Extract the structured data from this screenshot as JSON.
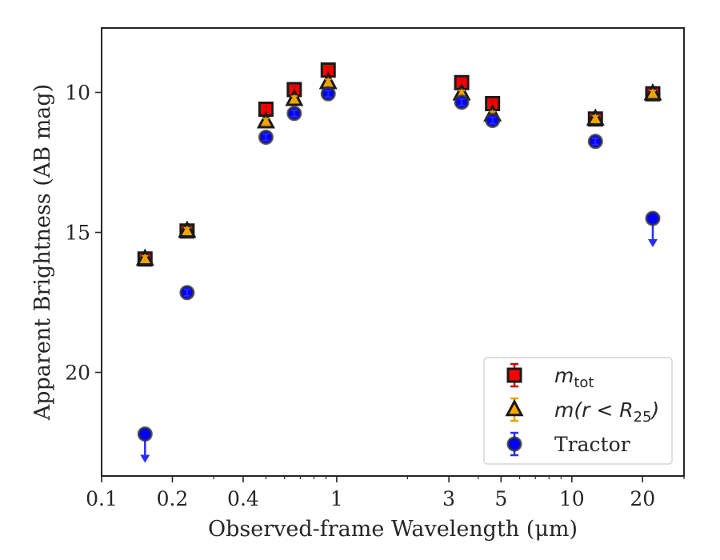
{
  "chart_data": {
    "type": "scatter",
    "title": "",
    "xlabel": "Observed-frame Wavelength (μm)",
    "ylabel": "Apparent Brightness (AB mag)",
    "xscale": "log",
    "xlim": [
      0.1,
      30
    ],
    "ylim": [
      23.7,
      7.7
    ],
    "y_inverted": true,
    "grid": false,
    "legend_position": "lower-right",
    "xticks": [
      {
        "value": 0.1,
        "label": "0.1"
      },
      {
        "value": 0.2,
        "label": "0.2"
      },
      {
        "value": 0.4,
        "label": "0.4"
      },
      {
        "value": 1,
        "label": "1"
      },
      {
        "value": 3,
        "label": "3"
      },
      {
        "value": 5,
        "label": "5"
      },
      {
        "value": 10,
        "label": "10"
      },
      {
        "value": 20,
        "label": "20"
      }
    ],
    "yticks": [
      {
        "value": 10,
        "label": "10"
      },
      {
        "value": 15,
        "label": "15"
      },
      {
        "value": 20,
        "label": "20"
      }
    ],
    "series": [
      {
        "name": "m_tot",
        "legend_main": "m",
        "legend_sub": "tot",
        "marker": "square",
        "color": "#ff0000",
        "edge": "#1a1a1a",
        "errcolor": "#d40000",
        "points": [
          {
            "x": 0.153,
            "y": 15.95
          },
          {
            "x": 0.231,
            "y": 14.95
          },
          {
            "x": 0.5,
            "y": 10.6
          },
          {
            "x": 0.66,
            "y": 9.9
          },
          {
            "x": 0.92,
            "y": 9.2
          },
          {
            "x": 3.4,
            "y": 9.65
          },
          {
            "x": 4.6,
            "y": 10.4
          },
          {
            "x": 12.6,
            "y": 10.95
          },
          {
            "x": 22.1,
            "y": 10.05
          }
        ]
      },
      {
        "name": "m(r < R_25)",
        "legend_main": "m(r < R",
        "legend_sub": "25",
        "legend_after": ")",
        "marker": "triangle",
        "color": "#ffa500",
        "edge": "#1a1a1a",
        "errcolor": "#e6a400",
        "points": [
          {
            "x": 0.153,
            "y": 15.95
          },
          {
            "x": 0.231,
            "y": 14.95
          },
          {
            "x": 0.5,
            "y": 11.05
          },
          {
            "x": 0.66,
            "y": 10.25
          },
          {
            "x": 0.92,
            "y": 9.65
          },
          {
            "x": 3.4,
            "y": 10.05
          },
          {
            "x": 4.6,
            "y": 10.8
          },
          {
            "x": 12.6,
            "y": 10.95
          },
          {
            "x": 22.1,
            "y": 10.05
          }
        ]
      },
      {
        "name": "Tractor",
        "legend_main": "Tractor",
        "marker": "circle",
        "color": "#0000ff",
        "edge": "#333333",
        "errcolor": "#2b2bff",
        "points": [
          {
            "x": 0.153,
            "y": 22.2,
            "upper_limit": true
          },
          {
            "x": 0.231,
            "y": 17.15
          },
          {
            "x": 0.5,
            "y": 11.6
          },
          {
            "x": 0.66,
            "y": 10.75
          },
          {
            "x": 0.92,
            "y": 10.05
          },
          {
            "x": 3.4,
            "y": 10.35
          },
          {
            "x": 4.6,
            "y": 11.0
          },
          {
            "x": 12.6,
            "y": 11.75
          },
          {
            "x": 22.1,
            "y": 14.5,
            "upper_limit": true
          }
        ]
      }
    ]
  }
}
